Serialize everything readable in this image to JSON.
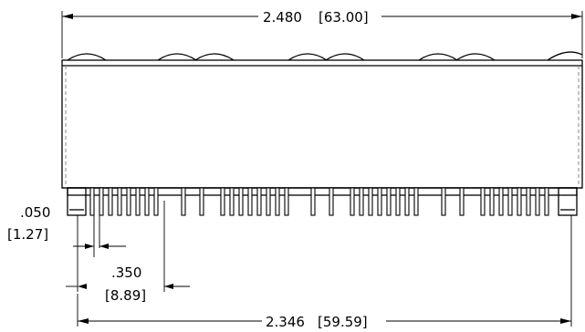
{
  "dimensions": {
    "overall_width": {
      "imperial": "2.480",
      "metric": "[63.00]"
    },
    "pin_pitch": {
      "imperial": ".050",
      "metric": "[1.27]"
    },
    "group_spacing": {
      "imperial": ".350",
      "metric": "[8.89]"
    },
    "pin_span": {
      "imperial": "2.346",
      "metric": "[59.59]"
    }
  },
  "colors": {
    "line": "#000000",
    "hidden_edge": "#888888",
    "background": "#ffffff"
  }
}
